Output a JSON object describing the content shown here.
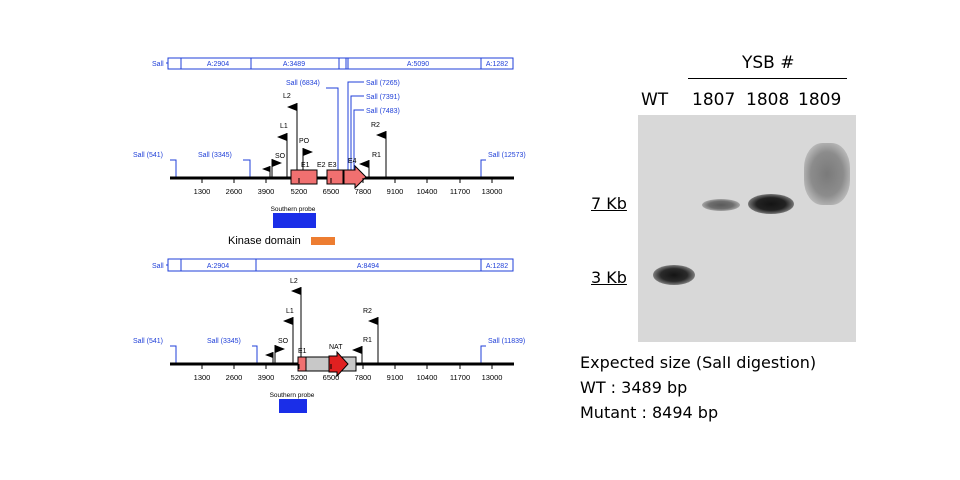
{
  "top_map": {
    "fragment_labels": [
      "A:2904",
      "A:3489",
      "A:5090",
      "A:1282"
    ],
    "sall_left": "Sall",
    "cut_sites": [
      "Sall (541)",
      "Sall (3345)",
      "Sall (6834)",
      "Sall (7265)",
      "Sall (7391)",
      "Sall (7483)",
      "Sall (12573)"
    ],
    "primers": [
      "L2",
      "L1",
      "PO",
      "SO",
      "R2",
      "R1"
    ],
    "exons": [
      "E1",
      "E2",
      "E3",
      "E4"
    ],
    "ticks": [
      "1300",
      "2600",
      "3900",
      "5200",
      "6500",
      "7800",
      "9100",
      "10400",
      "11700",
      "13000"
    ],
    "probe_label": "Southern probe"
  },
  "legend": {
    "kinase_label": "Kinase domain",
    "kinase_color": "#ed7d31"
  },
  "bottom_map": {
    "fragment_labels": [
      "A:2904",
      "A:8494",
      "A:1282"
    ],
    "sall_left": "Sall",
    "cut_sites": [
      "Sall (541)",
      "Sall (3345)",
      "Sall (11839)"
    ],
    "primers": [
      "L2",
      "L1",
      "SO",
      "R2",
      "R1"
    ],
    "exon": "E1",
    "marker": "NAT",
    "ticks": [
      "1300",
      "2600",
      "3900",
      "5200",
      "6500",
      "7800",
      "9100",
      "10400",
      "11700",
      "13000"
    ],
    "probe_label": "Southern probe"
  },
  "blot": {
    "title": "YSB #",
    "lanes": [
      "WT",
      "1807",
      "1808",
      "1809"
    ],
    "markers": [
      "7 Kb",
      "3 Kb"
    ],
    "caption": [
      "Expected size (SalI digestion)",
      "WT : 3489 bp",
      "Mutant : 8494 bp"
    ]
  },
  "colors": {
    "map_blue": "#1f3fd8",
    "exon_red": "#f07070",
    "probe_blue": "#1a2ee8",
    "arrow_red": "#e02020",
    "nat_gray": "#c8c8c8"
  }
}
